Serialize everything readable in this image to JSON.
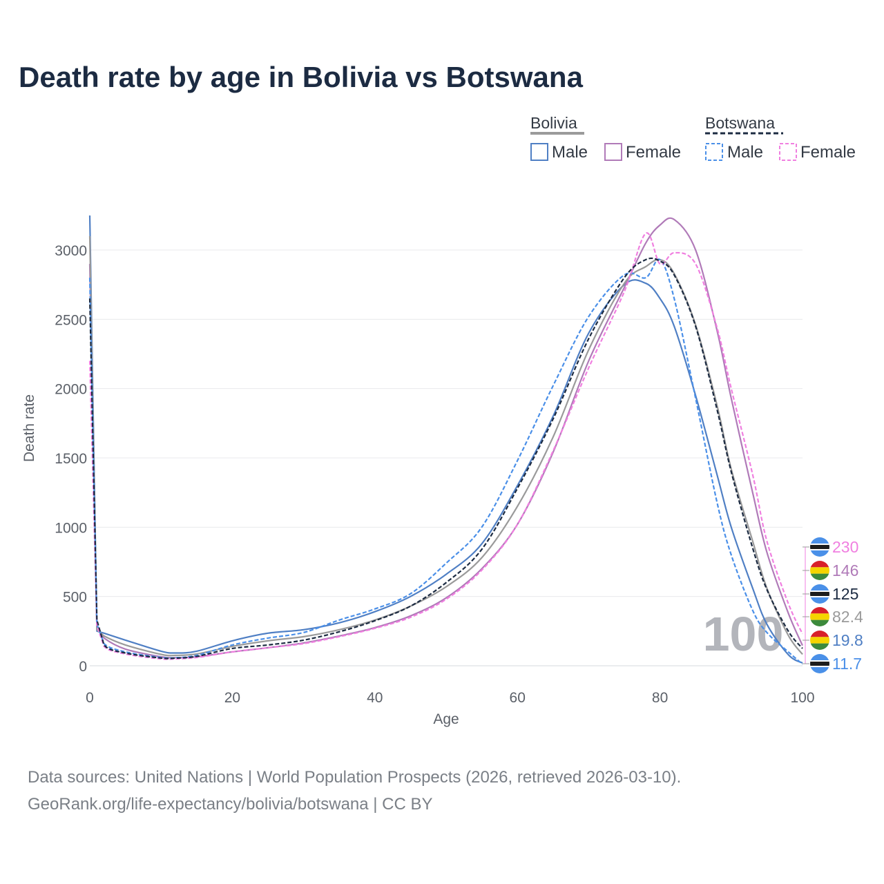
{
  "title": "Death rate by age in Bolivia vs Botswana",
  "legend": {
    "countries": [
      {
        "name": "Bolivia",
        "line_style": "solid",
        "color": "#9a9a9a"
      },
      {
        "name": "Botswana",
        "line_style": "dashed",
        "color": "#1c2b42"
      }
    ],
    "items": [
      "Male",
      "Female",
      "Male",
      "Female"
    ]
  },
  "age_marker": "100",
  "source": {
    "line1": "Data sources: United Nations | World Population Prospects (2026, retrieved 2026-03-10).",
    "line2": "GeoRank.org/life-expectancy/bolivia/botswana | CC BY"
  },
  "chart_data": {
    "type": "line",
    "title": "Death rate by age in Bolivia vs Botswana",
    "xlabel": "Age",
    "ylabel": "Death rate",
    "xlim": [
      0,
      100
    ],
    "ylim": [
      0,
      3250
    ],
    "x_ticks": [
      0,
      20,
      40,
      60,
      80,
      100
    ],
    "y_ticks": [
      0,
      500,
      1000,
      1500,
      2000,
      2500,
      3000
    ],
    "x": [
      0,
      1,
      2,
      5,
      10,
      12,
      15,
      20,
      25,
      30,
      35,
      40,
      45,
      50,
      55,
      60,
      65,
      70,
      75,
      78,
      80,
      82,
      85,
      88,
      90,
      93,
      95,
      98,
      100
    ],
    "series": [
      {
        "name": "Bolivia Male",
        "country": "Bolivia",
        "sex": "Male",
        "style": "solid",
        "color": "#4f7fc4",
        "values": [
          3250,
          250,
          235,
          185,
          105,
          92,
          105,
          180,
          235,
          260,
          310,
          390,
          500,
          660,
          880,
          1300,
          1800,
          2400,
          2750,
          2760,
          2650,
          2450,
          1950,
          1380,
          1000,
          560,
          300,
          80,
          19.8
        ]
      },
      {
        "name": "Bolivia Female",
        "country": "Bolivia",
        "sex": "Female",
        "style": "solid",
        "color": "#b07ab8",
        "values": [
          2900,
          270,
          200,
          120,
          65,
          58,
          65,
          100,
          130,
          165,
          215,
          275,
          360,
          490,
          700,
          1020,
          1540,
          2200,
          2730,
          3050,
          3180,
          3220,
          3000,
          2420,
          1930,
          1250,
          820,
          380,
          146
        ]
      },
      {
        "name": "Bolivia Total",
        "country": "Bolivia",
        "sex": "Total",
        "style": "solid",
        "color": "#9a9a9a",
        "values": [
          3100,
          260,
          215,
          150,
          82,
          75,
          85,
          140,
          180,
          210,
          260,
          330,
          430,
          570,
          780,
          1150,
          1650,
          2280,
          2760,
          2880,
          2930,
          2830,
          2460,
          1880,
          1420,
          900,
          560,
          220,
          82.4
        ]
      },
      {
        "name": "Botswana Male",
        "country": "Botswana",
        "sex": "Male",
        "style": "dashed",
        "color": "#4a8fe8",
        "values": [
          2800,
          300,
          160,
          100,
          60,
          58,
          75,
          150,
          200,
          240,
          330,
          410,
          520,
          740,
          1000,
          1480,
          2020,
          2520,
          2820,
          2800,
          2930,
          2650,
          1930,
          1180,
          800,
          400,
          240,
          100,
          11.7
        ]
      },
      {
        "name": "Botswana Female",
        "country": "Botswana",
        "sex": "Female",
        "style": "dashed",
        "color": "#f07fe0",
        "values": [
          2200,
          290,
          140,
          85,
          50,
          50,
          60,
          100,
          130,
          160,
          210,
          270,
          350,
          480,
          690,
          1020,
          1550,
          2150,
          2700,
          3120,
          2900,
          2980,
          2900,
          2440,
          2000,
          1380,
          900,
          450,
          230
        ]
      },
      {
        "name": "Botswana Total",
        "country": "Botswana",
        "sex": "Total",
        "style": "dashed",
        "color": "#1c2b42",
        "values": [
          2650,
          330,
          150,
          92,
          56,
          55,
          68,
          125,
          150,
          185,
          245,
          325,
          430,
          600,
          840,
          1280,
          1780,
          2360,
          2800,
          2930,
          2920,
          2820,
          2450,
          1850,
          1400,
          850,
          550,
          250,
          125
        ]
      }
    ],
    "end_labels": [
      {
        "text": "230",
        "color": "#f07fe0",
        "flag": "botswana"
      },
      {
        "text": "146",
        "color": "#b07ab8",
        "flag": "bolivia"
      },
      {
        "text": "125",
        "color": "#1c2b42",
        "flag": "botswana"
      },
      {
        "text": "82.4",
        "color": "#9a9a9a",
        "flag": "bolivia"
      },
      {
        "text": "19.8",
        "color": "#4f7fc4",
        "flag": "bolivia"
      },
      {
        "text": "11.7",
        "color": "#4a8fe8",
        "flag": "botswana"
      }
    ],
    "legend_position": "top-right",
    "grid": true
  }
}
